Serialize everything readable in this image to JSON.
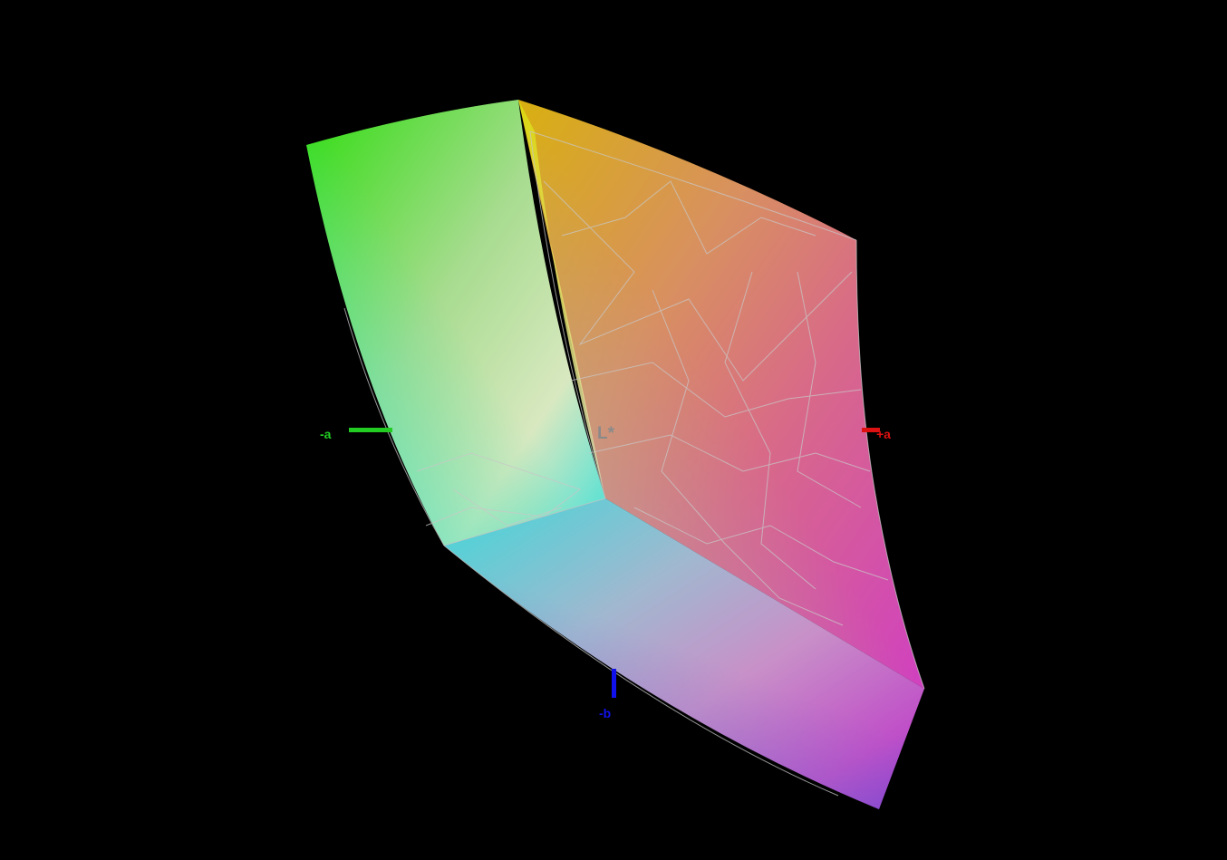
{
  "axes": {
    "neg_a": {
      "label": "-a",
      "color": "#22cc22"
    },
    "pos_a": {
      "label": "+a",
      "color": "#dd1111"
    },
    "neg_b": {
      "label": "-b",
      "color": "#1111ee"
    },
    "lightness": {
      "label": "L*",
      "color": "#8a8a8a"
    }
  },
  "colors": {
    "background": "#000000",
    "wireframe": "#c8c8c8",
    "green": "#33dd11",
    "yellow": "#d8e010",
    "orange": "#d87020",
    "red": "#e04030",
    "magenta": "#d040c0",
    "purple": "#8a3ad0",
    "cyan": "#40e0d8",
    "white": "#e8e8e0"
  }
}
